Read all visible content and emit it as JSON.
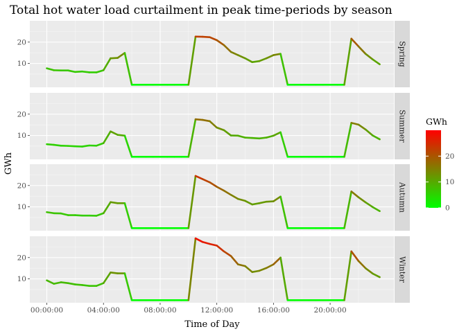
{
  "chart_data": {
    "type": "line",
    "title": "Total hot water load curtailment in peak time-periods by season",
    "xlabel": "Time of Day",
    "ylabel": "GWh",
    "x_tick_labels": [
      "00:00:00",
      "04:00:00",
      "08:00:00",
      "12:00:00",
      "16:00:00",
      "20:00:00"
    ],
    "x_tick_hours": [
      0,
      4,
      8,
      12,
      16,
      20
    ],
    "xlim_hours": [
      -1.2,
      24.5
    ],
    "ylim": [
      -1.2,
      30
    ],
    "y_ticks": [
      10,
      20
    ],
    "grid": true,
    "legend": {
      "title": "GWh",
      "position": "right",
      "ticks": [
        0,
        10,
        20
      ],
      "min": 0,
      "max": 30,
      "low_color": "#00FF00",
      "high_color": "#FF0000"
    },
    "x_hours": [
      0,
      0.5,
      1,
      1.5,
      2,
      2.5,
      3,
      3.5,
      4,
      4.5,
      5,
      5.5,
      6,
      6.5,
      7,
      7.5,
      8,
      8.5,
      9,
      9.5,
      10,
      10.5,
      11,
      11.5,
      12,
      12.5,
      13,
      13.5,
      14,
      14.5,
      15,
      15.5,
      16,
      16.5,
      17,
      17.5,
      18,
      18.5,
      19,
      19.5,
      20,
      20.5,
      21,
      21.5,
      22,
      22.5,
      23,
      23.5
    ],
    "series": [
      {
        "name": "Spring",
        "values": [
          7.7,
          6.8,
          6.7,
          6.7,
          6.0,
          6.2,
          5.8,
          5.8,
          6.8,
          12.4,
          12.6,
          14.9,
          0,
          0,
          0,
          0,
          0,
          0,
          0,
          0,
          0,
          22.6,
          22.5,
          22.3,
          20.9,
          18.6,
          15.4,
          13.9,
          12.4,
          10.6,
          11.1,
          12.4,
          13.9,
          14.5,
          0,
          0,
          0,
          0,
          0,
          0,
          0,
          0,
          0,
          21.6,
          18.0,
          14.5,
          11.9,
          9.6
        ]
      },
      {
        "name": "Summer",
        "values": [
          5.9,
          5.6,
          5.2,
          5.1,
          4.9,
          4.8,
          5.3,
          5.2,
          6.4,
          11.9,
          10.3,
          9.9,
          0,
          0,
          0,
          0,
          0,
          0,
          0,
          0,
          0,
          17.6,
          17.3,
          16.7,
          13.7,
          12.5,
          10.0,
          9.9,
          9.0,
          8.8,
          8.6,
          9.0,
          9.9,
          11.5,
          0,
          0,
          0,
          0,
          0,
          0,
          0,
          0,
          0,
          15.9,
          15.1,
          12.8,
          10.0,
          8.2
        ]
      },
      {
        "name": "Autumn",
        "values": [
          7.5,
          7.0,
          6.9,
          6.1,
          6.1,
          5.9,
          5.9,
          5.8,
          7.0,
          12.2,
          11.7,
          11.7,
          0,
          0,
          0,
          0,
          0,
          0,
          0,
          0,
          0,
          24.5,
          23.0,
          21.5,
          19.4,
          17.6,
          15.6,
          13.7,
          12.8,
          11.1,
          11.7,
          12.4,
          12.6,
          14.8,
          0,
          0,
          0,
          0,
          0,
          0,
          0,
          0,
          0,
          17.2,
          14.5,
          12.1,
          9.9,
          8.0
        ]
      },
      {
        "name": "Winter",
        "values": [
          9.3,
          7.7,
          8.4,
          8.0,
          7.4,
          7.1,
          6.7,
          6.7,
          8.0,
          13.0,
          12.6,
          12.6,
          0,
          0,
          0,
          0,
          0,
          0,
          0,
          0,
          0,
          29.0,
          27.3,
          26.4,
          25.6,
          22.9,
          20.7,
          16.8,
          16.0,
          13.2,
          13.8,
          15.1,
          16.8,
          20.0,
          0,
          0,
          0,
          0,
          0,
          0,
          0,
          0,
          0,
          22.9,
          18.4,
          15.0,
          12.5,
          10.8
        ]
      }
    ]
  }
}
